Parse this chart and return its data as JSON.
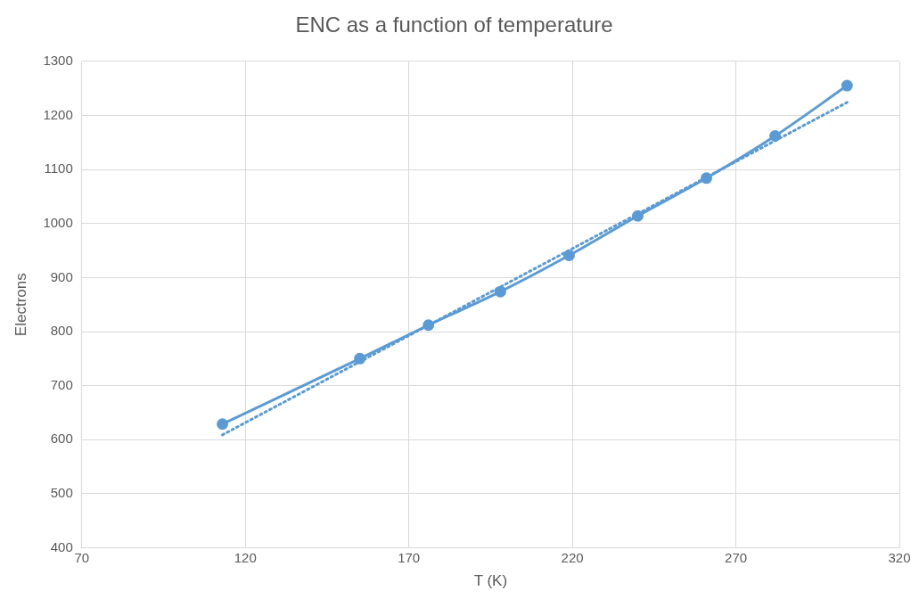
{
  "chart_data": {
    "type": "line",
    "title": "ENC as a function of temperature",
    "xlabel": "T (K)",
    "ylabel": "Electrons",
    "xlim": [
      70,
      320
    ],
    "xticks": [
      70,
      120,
      170,
      220,
      270,
      320
    ],
    "ylim": [
      400,
      1300
    ],
    "yticks": [
      400,
      500,
      600,
      700,
      800,
      900,
      1000,
      1100,
      1200,
      1300
    ],
    "grid": true,
    "legend": false,
    "series": [
      {
        "color": "#5b9bd5",
        "x": [
          113,
          155,
          176,
          198,
          219,
          240,
          261,
          282,
          304
        ],
        "values": [
          629,
          750,
          812,
          874,
          941,
          1014,
          1084,
          1162,
          1255
        ],
        "marker": "circle",
        "line_style": "solid"
      },
      {
        "type": "line",
        "color": "#5b9bd5",
        "x": [
          113,
          304
        ],
        "values": [
          609,
          1224
        ],
        "marker": "none",
        "line_style": "dotted"
      }
    ]
  }
}
